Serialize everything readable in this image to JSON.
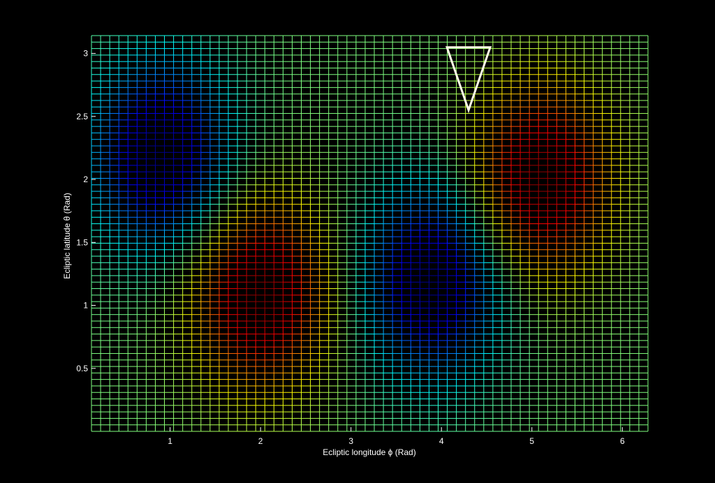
{
  "chart_data": {
    "type": "heatmap",
    "title": "",
    "xlabel": "Ecliptic longitude ϕ (Rad)",
    "ylabel": "Ecliptic latitude θ (Rad)",
    "xlim": [
      0.1309,
      6.2832
    ],
    "ylim": [
      0.0,
      3.1416
    ],
    "x_ticks": [
      1,
      2,
      3,
      4,
      5,
      6
    ],
    "y_ticks": [
      0.5,
      1,
      1.5,
      2,
      2.5,
      3
    ],
    "x_tick_labels": [
      "1",
      "2",
      "3",
      "4",
      "5",
      "6"
    ],
    "y_tick_labels": [
      "0.5",
      "1",
      "1.5",
      "2",
      "2.5",
      "3"
    ],
    "mesh": {
      "nx": 62,
      "ny": 62,
      "style": "wireframe mesh colored by value"
    },
    "colormap": "jet",
    "background": "#000000",
    "surface_peaks": [
      {
        "type": "max",
        "x": 2.0,
        "y": 1.1
      },
      {
        "type": "max",
        "x": 5.1,
        "y": 2.0
      },
      {
        "type": "min",
        "x": 0.9,
        "y": 2.2
      },
      {
        "type": "min",
        "x": 3.9,
        "y": 1.2
      }
    ],
    "marker": {
      "shape": "inverted-triangle",
      "x": 4.3,
      "y": 2.55,
      "color": "#fffbe6"
    }
  }
}
